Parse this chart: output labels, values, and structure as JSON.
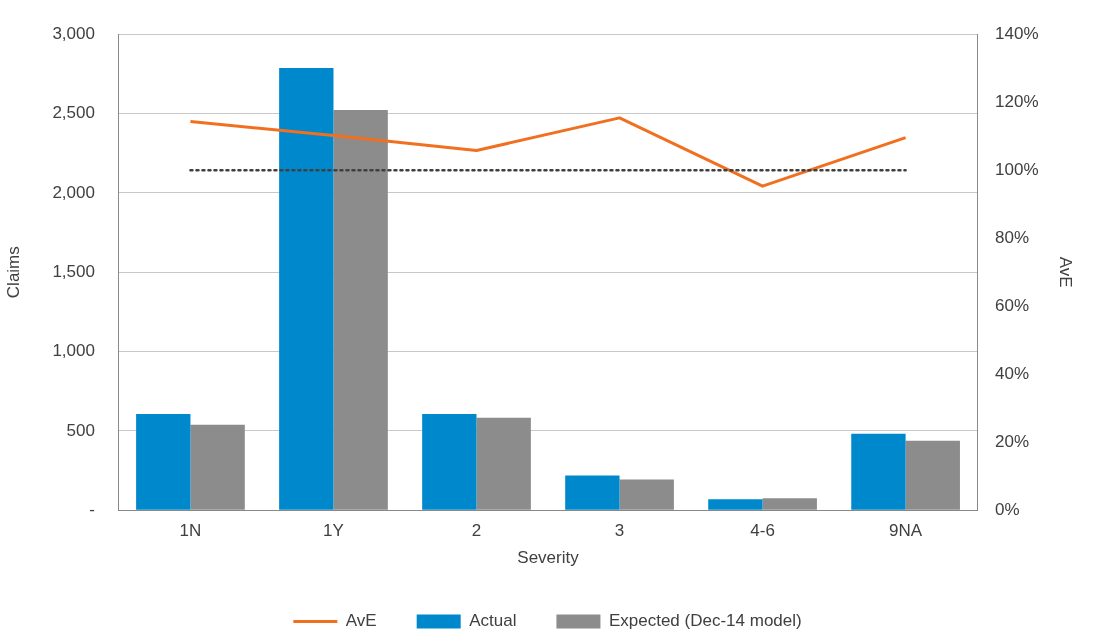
{
  "chart_data": {
    "type": "bar",
    "xlabel": "Severity",
    "ylabel": "Claims",
    "y2label": "AvE",
    "categories": [
      "1N",
      "1Y",
      "2",
      "3",
      "4-6",
      "9NA"
    ],
    "series": [
      {
        "name": "Actual",
        "color": "#0088cc",
        "values": [
          607,
          2787,
          607,
          219,
          69,
          482
        ]
      },
      {
        "name": "Expected (Dec-14 model)",
        "color": "#8c8c8c",
        "values": [
          538,
          2523,
          582,
          194,
          75,
          438
        ]
      },
      {
        "name": "AvE",
        "type": "line",
        "axis": "y2",
        "color": "#f07020",
        "values": [
          114.3,
          110.2,
          105.8,
          115.4,
          95.3,
          109.6
        ]
      }
    ],
    "ylim": [
      0,
      3000
    ],
    "yticks": [
      {
        "value": 0,
        "label": "-"
      },
      {
        "value": 500,
        "label": "500"
      },
      {
        "value": 1000,
        "label": "1,000"
      },
      {
        "value": 1500,
        "label": "1,500"
      },
      {
        "value": 2000,
        "label": "2,000"
      },
      {
        "value": 2500,
        "label": "2,500"
      },
      {
        "value": 3000,
        "label": "3,000"
      }
    ],
    "y2lim": [
      0,
      140
    ],
    "y2ticks": [
      {
        "value": 0,
        "label": "0%"
      },
      {
        "value": 20,
        "label": "20%"
      },
      {
        "value": 40,
        "label": "40%"
      },
      {
        "value": 60,
        "label": "60%"
      },
      {
        "value": 80,
        "label": "80%"
      },
      {
        "value": 100,
        "label": "100%"
      },
      {
        "value": 120,
        "label": "120%"
      },
      {
        "value": 140,
        "label": "140%"
      }
    ],
    "ref_lines": [
      {
        "axis": "y2",
        "value": 100,
        "color": "#404040",
        "line_style": "dotted"
      }
    ],
    "grid": "y",
    "legend": "bottom",
    "marker": "none"
  }
}
